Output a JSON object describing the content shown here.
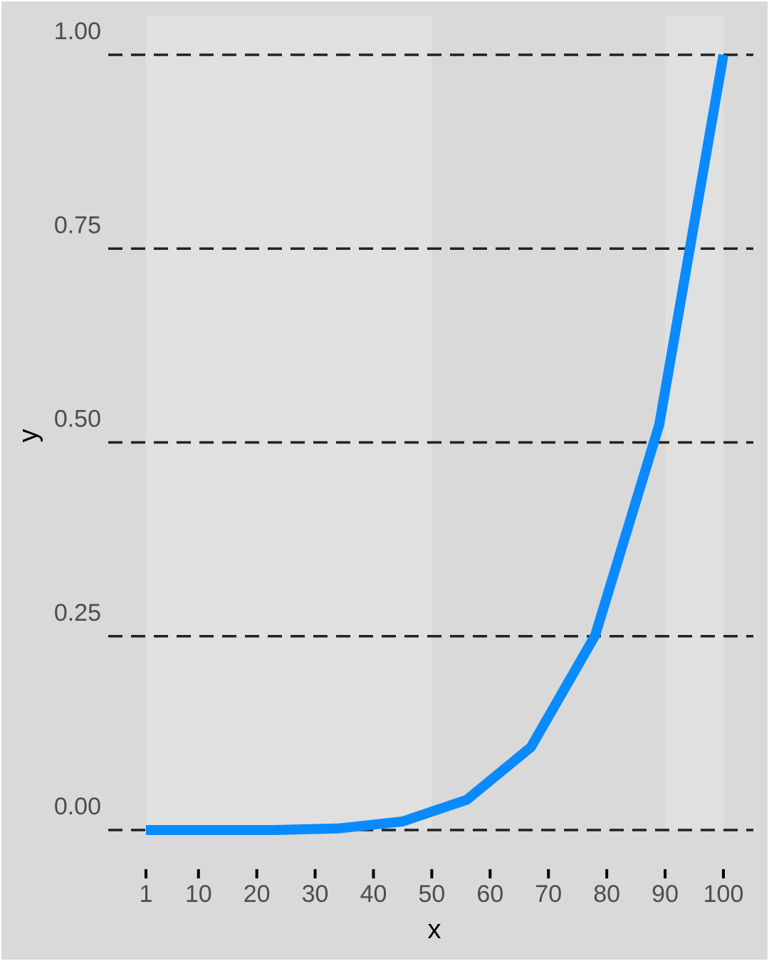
{
  "chart_data": {
    "type": "line",
    "title": "",
    "xlabel": "x",
    "ylabel": "y",
    "x_ticks": [
      1,
      10,
      20,
      30,
      40,
      50,
      60,
      70,
      80,
      90,
      100
    ],
    "x_tick_labels": [
      "1",
      "10",
      "20",
      "30",
      "40",
      "50",
      "60",
      "70",
      "80",
      "90",
      "100"
    ],
    "y_ticks": [
      0,
      0.25,
      0.5,
      0.75,
      1.0
    ],
    "y_tick_labels": [
      "0.00",
      "0.25",
      "0.50",
      "0.75",
      "1.00"
    ],
    "xlim": [
      1,
      100
    ],
    "ylim": [
      0,
      1.0
    ],
    "gridlines": "horizontal dashed",
    "legend": "none",
    "series": [
      {
        "x": [
          1,
          12,
          23,
          34,
          45,
          56,
          67,
          78,
          89,
          100
        ],
        "y": [
          0.0,
          0.0,
          0.0,
          0.002,
          0.011,
          0.039,
          0.107,
          0.251,
          0.523,
          1.0
        ]
      }
    ],
    "colors": {
      "line": "#0a8aff",
      "panel_background": "#d9d9d9",
      "plot_background": "#dedede",
      "highlight_band": "#e0e0e0",
      "gridline": "#000000"
    }
  }
}
